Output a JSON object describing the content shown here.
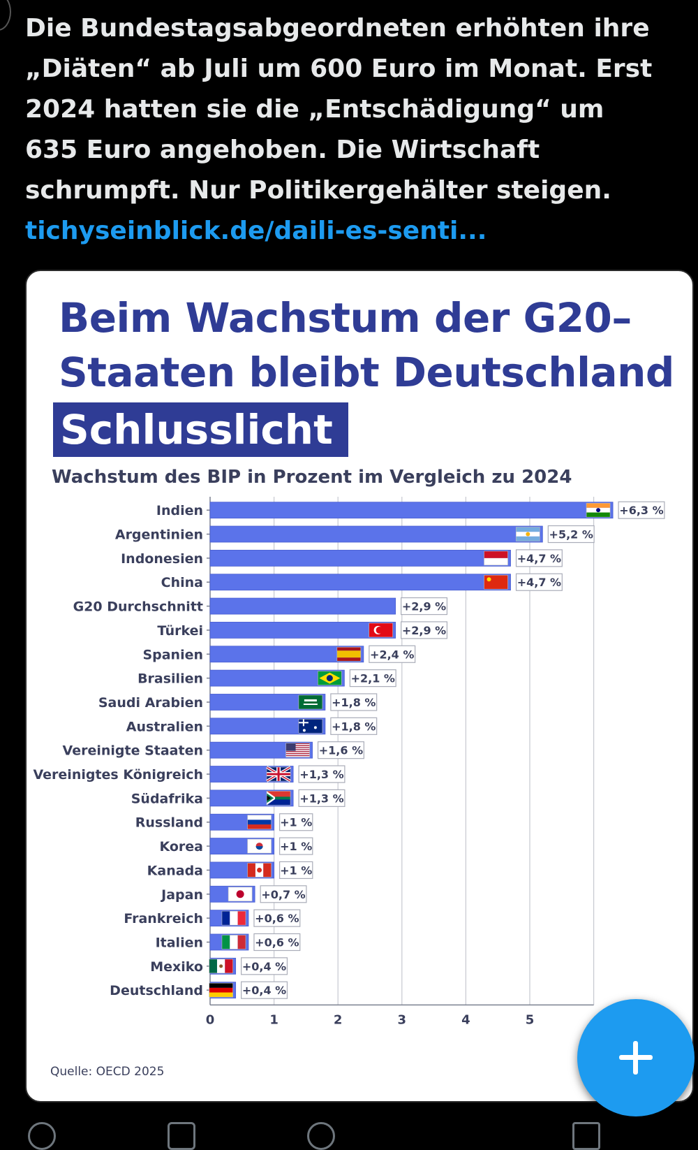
{
  "tweet": {
    "lines": [
      "Die Bundestagsabgeordneten erhöhten ihre",
      "„Diäten“ ab Juli um 600 Euro im Monat. Erst",
      "2024 hatten sie die „Entschädigung“ um",
      "635 Euro angehoben.  Die Wirtschaft",
      "schrumpft. Nur Politikergehälter steigen."
    ],
    "link": "tichyseinblick.de/daili-es-senti..."
  },
  "card": {
    "title_line1": "Beim Wachstum der G20–",
    "title_line2": "Staaten bleibt Deutschland",
    "highlight": "Schlusslicht",
    "subtitle": "Wachstum des BIP in Prozent im Vergleich zu 2024",
    "source": "Quelle: OECD 2025"
  },
  "chart_data": {
    "type": "bar",
    "orientation": "horizontal",
    "categories": [
      "Indien",
      "Argentinien",
      "Indonesien",
      "China",
      "G20 Durchschnitt",
      "Türkei",
      "Spanien",
      "Brasilien",
      "Saudi Arabien",
      "Australien",
      "Vereinigte Staaten",
      "Vereinigtes Königreich",
      "Südafrika",
      "Russland",
      "Korea",
      "Kanada",
      "Japan",
      "Frankreich",
      "Italien",
      "Mexiko",
      "Deutschland"
    ],
    "values": [
      6.3,
      5.2,
      4.7,
      4.7,
      2.9,
      2.9,
      2.4,
      2.1,
      1.8,
      1.8,
      1.6,
      1.3,
      1.3,
      1.0,
      1.0,
      1.0,
      0.7,
      0.6,
      0.6,
      0.4,
      0.4
    ],
    "labels": [
      "+6,3 %",
      "+5,2 %",
      "+4,7 %",
      "+4,7 %",
      "+2,9 %",
      "+2,9 %",
      "+2,4 %",
      "+2,1 %",
      "+1,8 %",
      "+1,8 %",
      "+1,6 %",
      "+1,3 %",
      "+1,3 %",
      "+1 %",
      "+1 %",
      "+1 %",
      "+0,7 %",
      "+0,6 %",
      "+0,6 %",
      "+0,4 %",
      "+0,4 %"
    ],
    "flags": [
      "india",
      "argentina",
      "indonesia",
      "china",
      "",
      "turkey",
      "spain",
      "brazil",
      "saudi",
      "australia",
      "usa",
      "uk",
      "southafrica",
      "russia",
      "korea",
      "canada",
      "japan",
      "france",
      "italy",
      "mexico",
      "germany"
    ],
    "xticks": [
      "0",
      "1",
      "2",
      "3",
      "4",
      "5"
    ],
    "xlim": [
      0,
      6.3
    ],
    "grid": true,
    "bar_color": "#5b73ea"
  },
  "colors": {
    "brand": "#2f3c95",
    "link": "#1d9bf0",
    "fab": "#1d9bf0"
  },
  "icons": {
    "fab": "plus-icon"
  }
}
